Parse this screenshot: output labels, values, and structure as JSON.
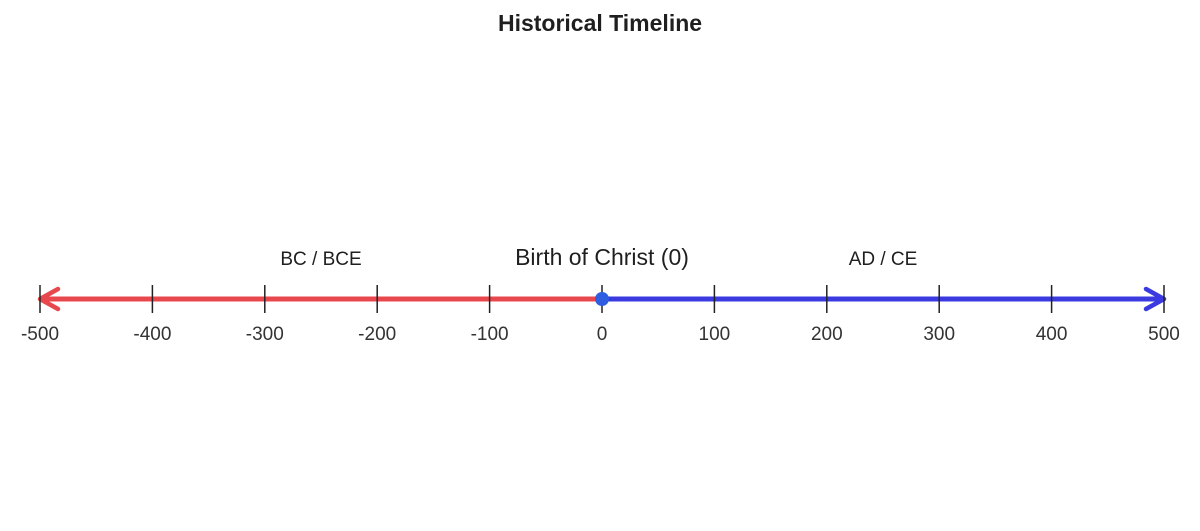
{
  "title": "Historical Timeline",
  "labels": {
    "bc": "BC / BCE",
    "center": "Birth of Christ (0)",
    "ad": "AD / CE"
  },
  "colors": {
    "bc_line": "#e8474e",
    "ad_line": "#3a3ae0",
    "center_point": "#2f5fe0",
    "tick": "#222222"
  },
  "chart_data": {
    "type": "number-line",
    "title": "Historical Timeline",
    "xlim": [
      -500,
      500
    ],
    "ticks": [
      -500,
      -400,
      -300,
      -200,
      -100,
      0,
      100,
      200,
      300,
      400,
      500
    ],
    "tick_labels": [
      "-500",
      "-400",
      "-300",
      "-200",
      "-100",
      "0",
      "100",
      "200",
      "300",
      "400",
      "500"
    ],
    "segments": [
      {
        "name": "BC / BCE",
        "from": 0,
        "to": -500,
        "color": "#e8474e"
      },
      {
        "name": "AD / CE",
        "from": 0,
        "to": 500,
        "color": "#3a3ae0"
      }
    ],
    "point": {
      "x": 0,
      "label": "Birth of Christ (0)"
    }
  }
}
